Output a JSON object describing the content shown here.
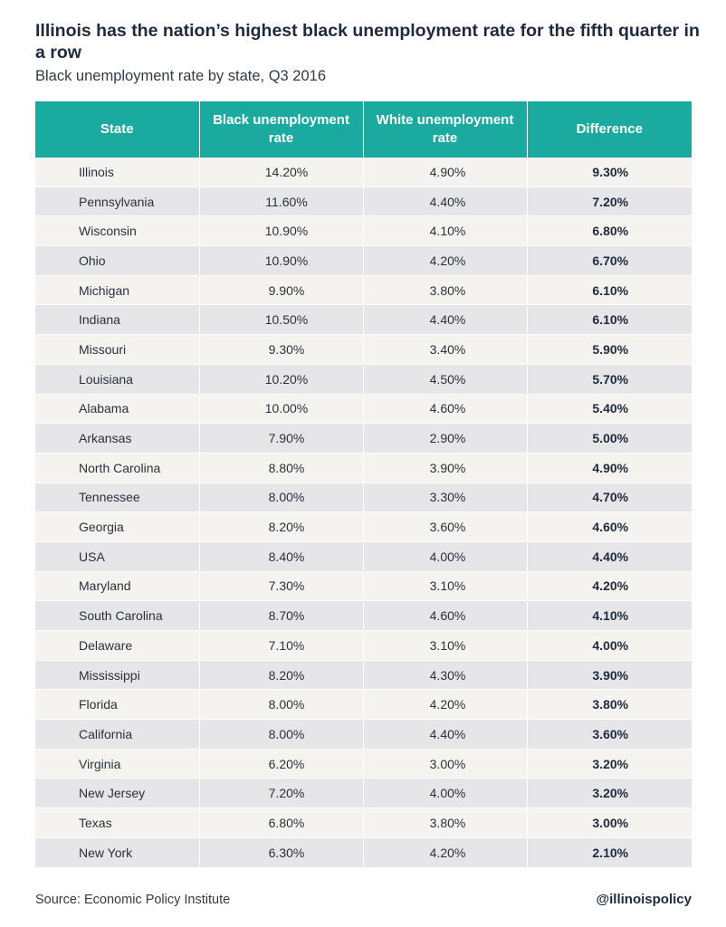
{
  "title": "Illinois has the nation’s highest black unemployment rate for the fifth quarter in a row",
  "subtitle": "Black unemployment rate by state, Q3 2016",
  "source": "Source: Economic Policy Institute",
  "handle": "@illinoispolicy",
  "colors": {
    "header": "#1aaaa0",
    "row_light": "#f5f3ef",
    "row_dark": "#e6e5e8"
  },
  "chart_data": {
    "type": "table",
    "columns": [
      "State",
      "Black unemployment rate",
      "White unemployment rate",
      "Difference"
    ],
    "rows": [
      [
        "Illinois",
        "14.20%",
        "4.90%",
        "9.30%"
      ],
      [
        "Pennsylvania",
        "11.60%",
        "4.40%",
        "7.20%"
      ],
      [
        "Wisconsin",
        "10.90%",
        "4.10%",
        "6.80%"
      ],
      [
        "Ohio",
        "10.90%",
        "4.20%",
        "6.70%"
      ],
      [
        "Michigan",
        "9.90%",
        "3.80%",
        "6.10%"
      ],
      [
        "Indiana",
        "10.50%",
        "4.40%",
        "6.10%"
      ],
      [
        "Missouri",
        "9.30%",
        "3.40%",
        "5.90%"
      ],
      [
        "Louisiana",
        "10.20%",
        "4.50%",
        "5.70%"
      ],
      [
        "Alabama",
        "10.00%",
        "4.60%",
        "5.40%"
      ],
      [
        "Arkansas",
        "7.90%",
        "2.90%",
        "5.00%"
      ],
      [
        "North Carolina",
        "8.80%",
        "3.90%",
        "4.90%"
      ],
      [
        "Tennessee",
        "8.00%",
        "3.30%",
        "4.70%"
      ],
      [
        "Georgia",
        "8.20%",
        "3.60%",
        "4.60%"
      ],
      [
        "USA",
        "8.40%",
        "4.00%",
        "4.40%"
      ],
      [
        "Maryland",
        "7.30%",
        "3.10%",
        "4.20%"
      ],
      [
        "South Carolina",
        "8.70%",
        "4.60%",
        "4.10%"
      ],
      [
        "Delaware",
        "7.10%",
        "3.10%",
        "4.00%"
      ],
      [
        "Mississippi",
        "8.20%",
        "4.30%",
        "3.90%"
      ],
      [
        "Florida",
        "8.00%",
        "4.20%",
        "3.80%"
      ],
      [
        "California",
        "8.00%",
        "4.40%",
        "3.60%"
      ],
      [
        "Virginia",
        "6.20%",
        "3.00%",
        "3.20%"
      ],
      [
        "New Jersey",
        "7.20%",
        "4.00%",
        "3.20%"
      ],
      [
        "Texas",
        "6.80%",
        "3.80%",
        "3.00%"
      ],
      [
        "New York",
        "6.30%",
        "4.20%",
        "2.10%"
      ]
    ]
  }
}
